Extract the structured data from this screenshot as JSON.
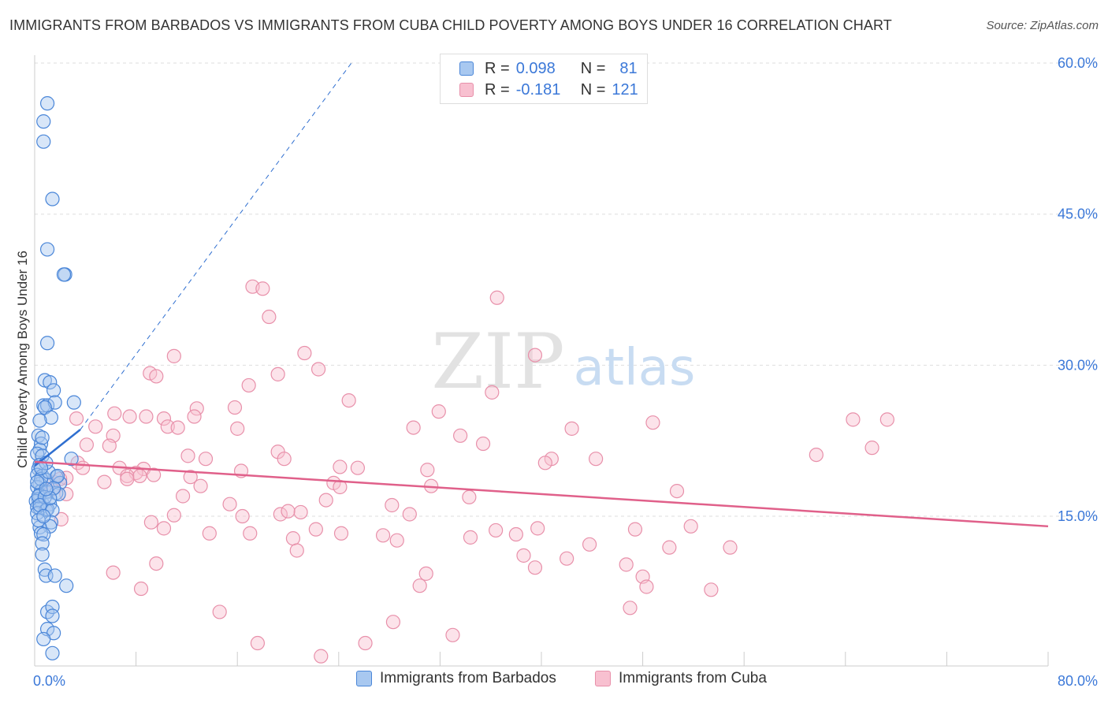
{
  "header": {
    "title": "IMMIGRANTS FROM BARBADOS VS IMMIGRANTS FROM CUBA CHILD POVERTY AMONG BOYS UNDER 16 CORRELATION CHART",
    "source": "Source: ZipAtlas.com"
  },
  "watermark": {
    "zip": "ZIP",
    "atlas": "atlas"
  },
  "legend": {
    "barbados": {
      "r_label": "R =",
      "r_value": "0.098",
      "n_label": "N =",
      "n_value": "81"
    },
    "cuba": {
      "r_label": "R =",
      "r_value": "-0.181",
      "n_label": "N =",
      "n_value": "121"
    }
  },
  "bottom_legend": {
    "barbados": "Immigrants from Barbados",
    "cuba": "Immigrants from Cuba"
  },
  "colors": {
    "barbados_fill": "#a8c8f0",
    "barbados_stroke": "#4a86d8",
    "barbados_line": "#2f6fd0",
    "cuba_fill": "#f8c0d0",
    "cuba_stroke": "#e890aa",
    "cuba_line": "#e0608a",
    "axis_text": "#3b78d8",
    "grid": "#dddddd"
  },
  "chart_data": {
    "type": "scatter",
    "title": "IMMIGRANTS FROM BARBADOS VS IMMIGRANTS FROM CUBA CHILD POVERTY AMONG BOYS UNDER 16 CORRELATION CHART",
    "xlabel": "",
    "ylabel": "Child Poverty Among Boys Under 16",
    "xlim": [
      0,
      80
    ],
    "ylim": [
      0,
      63
    ],
    "x_tick_labels": [
      "0.0%",
      "80.0%"
    ],
    "y_ticks": [
      15,
      30,
      45,
      60
    ],
    "y_tick_labels": [
      "15.0%",
      "30.0%",
      "45.0%",
      "60.0%"
    ],
    "series": [
      {
        "name": "Immigrants from Barbados",
        "r": 0.098,
        "n": 81,
        "trend": {
          "x": [
            0,
            3.6
          ],
          "y": [
            20.0,
            23.6
          ]
        },
        "trend_extension": {
          "x": [
            3.6,
            25
          ],
          "y": [
            23.6,
            60.0
          ]
        },
        "points": [
          [
            1.0,
            56.0
          ],
          [
            0.7,
            54.2
          ],
          [
            0.7,
            52.2
          ],
          [
            1.4,
            46.5
          ],
          [
            1.0,
            41.5
          ],
          [
            2.4,
            39.0
          ],
          [
            2.3,
            39.0
          ],
          [
            1.0,
            32.2
          ],
          [
            0.8,
            28.5
          ],
          [
            1.2,
            28.3
          ],
          [
            1.5,
            27.5
          ],
          [
            0.7,
            26.0
          ],
          [
            1.0,
            26.0
          ],
          [
            1.6,
            26.3
          ],
          [
            3.1,
            26.3
          ],
          [
            0.8,
            25.8
          ],
          [
            1.3,
            24.8
          ],
          [
            0.4,
            24.5
          ],
          [
            0.3,
            23.0
          ],
          [
            0.5,
            22.2
          ],
          [
            0.4,
            21.6
          ],
          [
            0.2,
            21.2
          ],
          [
            0.6,
            21.0
          ],
          [
            2.9,
            20.7
          ],
          [
            0.4,
            20.1
          ],
          [
            0.3,
            19.7
          ],
          [
            0.2,
            19.1
          ],
          [
            0.6,
            19.0
          ],
          [
            1.7,
            18.9
          ],
          [
            0.9,
            18.6
          ],
          [
            2.0,
            18.3
          ],
          [
            0.4,
            18.2
          ],
          [
            0.2,
            17.9
          ],
          [
            0.5,
            17.5
          ],
          [
            1.0,
            17.4
          ],
          [
            0.4,
            17.1
          ],
          [
            1.7,
            17.3
          ],
          [
            1.9,
            17.2
          ],
          [
            0.3,
            16.7
          ],
          [
            0.1,
            16.5
          ],
          [
            0.6,
            16.3
          ],
          [
            1.2,
            16.2
          ],
          [
            0.2,
            15.9
          ],
          [
            0.4,
            15.8
          ],
          [
            0.9,
            15.6
          ],
          [
            1.0,
            15.7
          ],
          [
            1.4,
            15.6
          ],
          [
            0.2,
            15.3
          ],
          [
            1.3,
            14.4
          ],
          [
            1.2,
            14.0
          ],
          [
            0.4,
            13.9
          ],
          [
            0.5,
            13.3
          ],
          [
            0.7,
            13.2
          ],
          [
            0.6,
            12.3
          ],
          [
            0.6,
            11.2
          ],
          [
            0.8,
            9.7
          ],
          [
            0.9,
            9.1
          ],
          [
            1.6,
            9.1
          ],
          [
            2.5,
            8.1
          ],
          [
            1.0,
            5.5
          ],
          [
            1.4,
            6.0
          ],
          [
            1.4,
            5.1
          ],
          [
            1.0,
            3.8
          ],
          [
            1.5,
            3.4
          ],
          [
            0.7,
            2.8
          ],
          [
            1.4,
            1.4
          ],
          [
            0.3,
            17.0
          ],
          [
            0.8,
            16.9
          ],
          [
            0.5,
            18.7
          ],
          [
            1.1,
            19.4
          ],
          [
            0.3,
            14.6
          ],
          [
            0.9,
            20.3
          ],
          [
            0.6,
            22.8
          ],
          [
            1.5,
            17.8
          ],
          [
            0.4,
            16.1
          ],
          [
            0.7,
            15.0
          ],
          [
            1.8,
            19.0
          ],
          [
            0.2,
            18.4
          ],
          [
            0.5,
            19.8
          ],
          [
            1.2,
            16.8
          ],
          [
            0.9,
            17.7
          ]
        ]
      },
      {
        "name": "Immigrants from Cuba",
        "r": -0.181,
        "n": 121,
        "trend": {
          "x": [
            0,
            80
          ],
          "y": [
            20.4,
            14.0
          ]
        },
        "points": [
          [
            17.2,
            37.8
          ],
          [
            18.0,
            37.6
          ],
          [
            36.5,
            36.7
          ],
          [
            18.5,
            34.8
          ],
          [
            21.3,
            31.2
          ],
          [
            11.0,
            30.9
          ],
          [
            39.5,
            31.0
          ],
          [
            22.4,
            29.6
          ],
          [
            9.1,
            29.2
          ],
          [
            9.6,
            28.9
          ],
          [
            19.2,
            29.1
          ],
          [
            16.9,
            28.0
          ],
          [
            36.1,
            27.3
          ],
          [
            24.8,
            26.5
          ],
          [
            15.8,
            25.8
          ],
          [
            6.3,
            25.2
          ],
          [
            12.8,
            25.7
          ],
          [
            31.9,
            25.4
          ],
          [
            7.5,
            24.9
          ],
          [
            8.8,
            24.9
          ],
          [
            10.2,
            24.7
          ],
          [
            12.6,
            24.9
          ],
          [
            3.3,
            24.7
          ],
          [
            10.5,
            23.9
          ],
          [
            11.3,
            23.8
          ],
          [
            16.0,
            23.7
          ],
          [
            29.9,
            23.8
          ],
          [
            42.4,
            23.7
          ],
          [
            48.8,
            24.3
          ],
          [
            4.8,
            23.9
          ],
          [
            6.2,
            23.0
          ],
          [
            33.6,
            23.0
          ],
          [
            35.4,
            22.2
          ],
          [
            64.6,
            24.6
          ],
          [
            67.3,
            24.6
          ],
          [
            4.1,
            22.1
          ],
          [
            5.9,
            22.0
          ],
          [
            19.2,
            21.4
          ],
          [
            66.1,
            21.8
          ],
          [
            12.1,
            21.0
          ],
          [
            13.5,
            20.7
          ],
          [
            40.8,
            20.7
          ],
          [
            40.3,
            20.3
          ],
          [
            44.3,
            20.7
          ],
          [
            61.7,
            21.1
          ],
          [
            19.7,
            20.7
          ],
          [
            3.4,
            20.3
          ],
          [
            3.8,
            19.8
          ],
          [
            6.7,
            19.8
          ],
          [
            8.6,
            19.7
          ],
          [
            24.1,
            19.9
          ],
          [
            25.5,
            19.8
          ],
          [
            31.0,
            19.6
          ],
          [
            8.0,
            19.3
          ],
          [
            16.3,
            19.5
          ],
          [
            7.3,
            19.0
          ],
          [
            8.3,
            19.0
          ],
          [
            12.3,
            18.9
          ],
          [
            9.4,
            19.1
          ],
          [
            7.3,
            18.7
          ],
          [
            2.5,
            18.8
          ],
          [
            5.5,
            18.4
          ],
          [
            1.5,
            18.4
          ],
          [
            2.0,
            18.7
          ],
          [
            23.6,
            18.3
          ],
          [
            24.1,
            17.9
          ],
          [
            13.1,
            18.0
          ],
          [
            31.3,
            18.0
          ],
          [
            1.4,
            17.7
          ],
          [
            2.5,
            17.2
          ],
          [
            50.7,
            17.5
          ],
          [
            11.7,
            17.0
          ],
          [
            23.0,
            16.6
          ],
          [
            34.3,
            16.9
          ],
          [
            15.4,
            16.2
          ],
          [
            28.2,
            16.1
          ],
          [
            11.0,
            15.1
          ],
          [
            21.0,
            15.4
          ],
          [
            16.4,
            15.0
          ],
          [
            29.6,
            15.2
          ],
          [
            19.4,
            15.2
          ],
          [
            20.0,
            15.5
          ],
          [
            2.1,
            14.7
          ],
          [
            9.2,
            14.4
          ],
          [
            10.2,
            13.8
          ],
          [
            22.2,
            13.7
          ],
          [
            36.4,
            13.6
          ],
          [
            39.7,
            13.8
          ],
          [
            47.4,
            13.7
          ],
          [
            51.8,
            14.0
          ],
          [
            13.8,
            13.3
          ],
          [
            17.0,
            13.3
          ],
          [
            20.4,
            12.8
          ],
          [
            24.2,
            13.3
          ],
          [
            27.5,
            13.1
          ],
          [
            28.6,
            12.6
          ],
          [
            34.4,
            12.9
          ],
          [
            38.0,
            13.2
          ],
          [
            43.8,
            12.2
          ],
          [
            20.7,
            11.6
          ],
          [
            50.1,
            11.9
          ],
          [
            54.9,
            11.9
          ],
          [
            38.6,
            11.1
          ],
          [
            42.0,
            10.8
          ],
          [
            46.7,
            10.2
          ],
          [
            9.6,
            10.3
          ],
          [
            6.2,
            9.4
          ],
          [
            30.9,
            9.3
          ],
          [
            39.5,
            9.9
          ],
          [
            48.0,
            9.0
          ],
          [
            48.3,
            8.0
          ],
          [
            30.4,
            8.1
          ],
          [
            8.4,
            7.8
          ],
          [
            53.4,
            7.7
          ],
          [
            14.6,
            5.5
          ],
          [
            47.0,
            5.9
          ],
          [
            28.3,
            4.5
          ],
          [
            33.0,
            3.2
          ],
          [
            17.6,
            2.4
          ],
          [
            26.1,
            2.4
          ],
          [
            22.6,
            1.1
          ]
        ]
      }
    ]
  }
}
